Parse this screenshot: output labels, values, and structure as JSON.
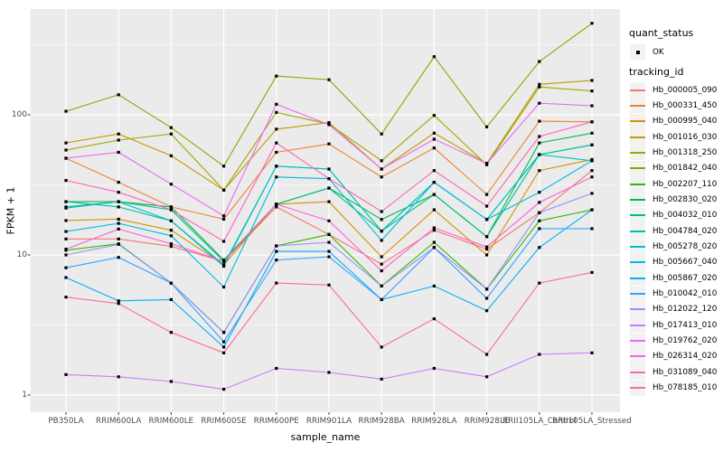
{
  "figure": {
    "background": "#FFFFFF",
    "panel_background": "#EBEBEB",
    "grid_color": "#FFFFFF",
    "tick_color": "#333333",
    "tick_label_color": "#4D4D4D",
    "point_color": "#000000"
  },
  "axes": {
    "x_title": "sample_name",
    "y_title": "FPKM + 1",
    "y_tick_labels": [
      "1",
      "10",
      "100"
    ]
  },
  "legend": {
    "quant_status_title": "quant_status",
    "quant_status_items": [
      {
        "label": "OK",
        "marker": "black-square"
      }
    ],
    "tracking_id_title": "tracking_id"
  },
  "chart_data": {
    "type": "line",
    "xlabel": "sample_name",
    "ylabel": "FPKM + 1",
    "yscale": "log10",
    "ylim": [
      1,
      560
    ],
    "yticks": [
      1,
      10,
      100
    ],
    "yminor": [
      3.1623,
      31.623,
      316.23
    ],
    "grid": true,
    "legend_position": "right",
    "point_shape": "filled-square",
    "categories": [
      "PB350LA",
      "RRIM600LA",
      "RRIM600LE",
      "RRIM600SE",
      "RRIM600PE",
      "RRIM901LA",
      "RRIM928BA",
      "RRIM928LA",
      "RRIM928LE",
      "RRII105LA_Control",
      "RRII105LA_Stressed"
    ],
    "series": [
      {
        "name": "Hb_000005_090",
        "color": "#F8766D",
        "values": [
          13,
          13,
          11.5,
          9,
          22,
          14,
          8.6,
          15,
          11,
          20,
          40
        ]
      },
      {
        "name": "Hb_000331_450",
        "color": "#EA8331",
        "values": [
          49,
          33,
          22,
          18,
          54,
          62,
          36,
          58,
          27,
          90,
          89
        ]
      },
      {
        "name": "Hb_000995_040",
        "color": "#D89000",
        "values": [
          17.6,
          18,
          15,
          8.5,
          23,
          24,
          9.7,
          21,
          10,
          40,
          48
        ]
      },
      {
        "name": "Hb_001016_030",
        "color": "#C09B00",
        "values": [
          63,
          73,
          51,
          29,
          79,
          88,
          41,
          74,
          45,
          165,
          176
        ]
      },
      {
        "name": "Hb_001318_250",
        "color": "#A3A500",
        "values": [
          56,
          66,
          73,
          29,
          104,
          86,
          47,
          99,
          44,
          158,
          148
        ]
      },
      {
        "name": "Hb_001842_040",
        "color": "#7CAE00",
        "values": [
          106,
          139,
          81,
          43,
          189,
          178,
          73,
          260,
          82,
          240,
          450
        ]
      },
      {
        "name": "Hb_002207_110",
        "color": "#39B600",
        "values": [
          10.8,
          12,
          6.3,
          2.8,
          11.6,
          14,
          6,
          12.3,
          5.7,
          17.5,
          21
        ]
      },
      {
        "name": "Hb_002830_020",
        "color": "#00BB4E",
        "values": [
          24,
          24,
          22,
          9.2,
          23,
          30,
          17.9,
          27,
          13.5,
          63,
          74
        ]
      },
      {
        "name": "Hb_004032_010",
        "color": "#00BF7D",
        "values": [
          22,
          24,
          21,
          9,
          23,
          30,
          14.8,
          27,
          13.5,
          52,
          61
        ]
      },
      {
        "name": "Hb_004784_020",
        "color": "#00C1A3",
        "values": [
          24,
          22,
          17.5,
          8.5,
          43,
          41,
          14.8,
          33,
          17.9,
          52,
          61
        ]
      },
      {
        "name": "Hb_005278_020",
        "color": "#00BFC4",
        "values": [
          21.6,
          24,
          17.5,
          8.3,
          43,
          41,
          14.8,
          33,
          17.9,
          52,
          47
        ]
      },
      {
        "name": "Hb_005667_040",
        "color": "#00BAE0",
        "values": [
          14.7,
          16.8,
          13.7,
          5.9,
          36,
          35,
          12.7,
          33,
          17.9,
          28,
          47
        ]
      },
      {
        "name": "Hb_005867_020",
        "color": "#00B0F6",
        "values": [
          6.9,
          4.7,
          4.8,
          2.2,
          10.6,
          10.6,
          4.8,
          6,
          4,
          11.3,
          21
        ]
      },
      {
        "name": "Hb_010042_010",
        "color": "#35A2FF",
        "values": [
          8.1,
          9.6,
          6.3,
          2.4,
          9.2,
          9.7,
          4.8,
          11.3,
          4.9,
          15.4,
          15.4
        ]
      },
      {
        "name": "Hb_012022_120",
        "color": "#9590FF",
        "values": [
          10,
          11.9,
          6.3,
          2.8,
          11.6,
          12.3,
          6,
          11.3,
          5.7,
          20,
          27.5
        ]
      },
      {
        "name": "Hb_017413_010",
        "color": "#C77CFF",
        "values": [
          1.4,
          1.35,
          1.25,
          1.1,
          1.55,
          1.45,
          1.3,
          1.55,
          1.35,
          1.95,
          2
        ]
      },
      {
        "name": "Hb_019762_020",
        "color": "#E76BF3",
        "values": [
          49,
          54,
          32,
          19,
          119,
          85,
          41,
          67,
          45,
          121,
          116
        ]
      },
      {
        "name": "Hb_026314_020",
        "color": "#FA62DB",
        "values": [
          11,
          15.3,
          12,
          9,
          23,
          17.5,
          7.7,
          15.6,
          11.4,
          23.7,
          36
        ]
      },
      {
        "name": "Hb_031089_040",
        "color": "#FF62BC",
        "values": [
          34,
          28,
          21,
          12.5,
          63,
          35,
          20.4,
          40,
          22.3,
          70,
          89
        ]
      },
      {
        "name": "Hb_078185_010",
        "color": "#FF6A98",
        "values": [
          5,
          4.5,
          2.8,
          2,
          6.3,
          6.1,
          2.2,
          3.5,
          1.95,
          6.3,
          7.5
        ]
      }
    ]
  }
}
